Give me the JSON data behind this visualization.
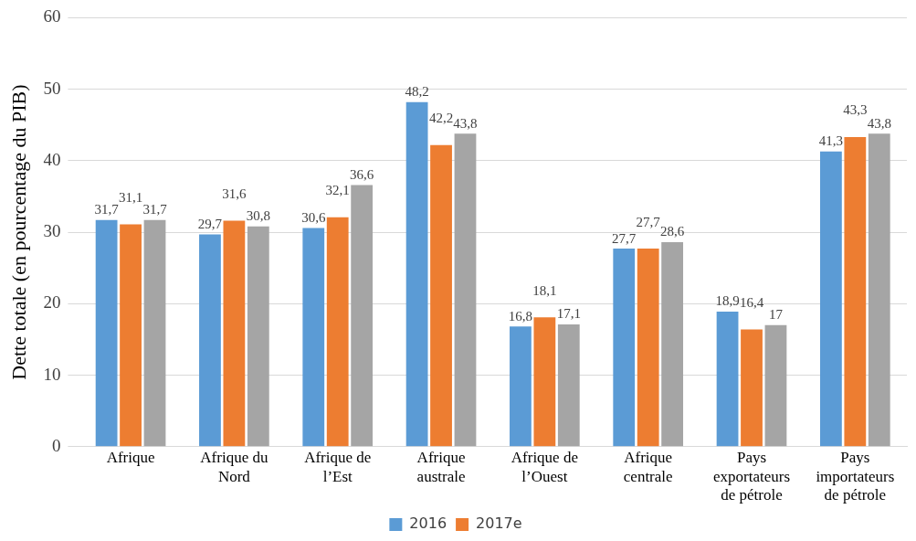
{
  "chart_data": {
    "type": "bar",
    "ylabel": "Dette totale (en pourcentage du PIB)",
    "categories": [
      "Afrique",
      "Afrique du Nord",
      "Afrique de l’Est",
      "Afrique australe",
      "Afrique de l’Ouest",
      "Afrique centrale",
      "Pays exportateurs de pétrole",
      "Pays importateurs de pétrole"
    ],
    "series": [
      {
        "name": "2016",
        "color": "#5b9bd5",
        "values": [
          31.7,
          29.7,
          30.6,
          48.2,
          16.8,
          27.7,
          18.9,
          41.3
        ],
        "value_labels": [
          "31,7",
          "29,7",
          "30,6",
          "48,2",
          "16,8",
          "27,7",
          "18,9",
          "41,3"
        ]
      },
      {
        "name": "2017e",
        "color": "#ed7d31",
        "values": [
          31.1,
          31.6,
          32.1,
          42.2,
          18.1,
          27.7,
          16.4,
          43.3
        ],
        "value_labels": [
          "31,1",
          "31,6",
          "32,1",
          "42,2",
          "18,1",
          "27,7",
          "16,4",
          "43,3"
        ]
      },
      {
        "color": "#a5a5a5",
        "values": [
          31.7,
          30.8,
          36.6,
          43.8,
          17.1,
          28.6,
          17,
          43.8
        ],
        "value_labels": [
          "31,7",
          "30,8",
          "36,6",
          "43,8",
          "17,1",
          "28,6",
          "17",
          "43,8"
        ]
      }
    ],
    "ylim": [
      0,
      60
    ],
    "yticks": [
      0,
      10,
      20,
      30,
      40,
      50,
      60
    ],
    "grid": "y",
    "legend": "bottom"
  }
}
